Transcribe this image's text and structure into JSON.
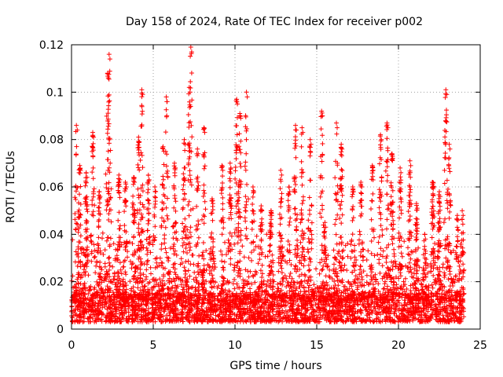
{
  "chart_data": {
    "type": "scatter",
    "title": "Day 158 of 2024, Rate Of TEC Index for receiver p002",
    "xlabel": "GPS time / hours",
    "ylabel": "ROTI / TECUs",
    "xlim": [
      0,
      25
    ],
    "ylim": [
      0,
      0.12
    ],
    "xticks": [
      0,
      5,
      10,
      15,
      20,
      25
    ],
    "xtick_labels": [
      "0",
      "5",
      "10",
      "15",
      "20",
      "25"
    ],
    "yticks": [
      0,
      0.02,
      0.04,
      0.06,
      0.08,
      0.1,
      0.12
    ],
    "ytick_labels": [
      "0",
      "0.02",
      "0.04",
      "0.06",
      "0.08",
      "0.1",
      "0.12"
    ],
    "grid": true,
    "marker": "+",
    "series": [
      {
        "name": "ROTI",
        "color": "#ff0000",
        "x_range": [
          0,
          24
        ],
        "baseline_band": [
          0.003,
          0.015
        ],
        "peaks": [
          {
            "x": 0.3,
            "y": 0.086
          },
          {
            "x": 0.5,
            "y": 0.069
          },
          {
            "x": 0.9,
            "y": 0.066
          },
          {
            "x": 1.3,
            "y": 0.083
          },
          {
            "x": 1.7,
            "y": 0.058
          },
          {
            "x": 2.2,
            "y": 0.108
          },
          {
            "x": 2.3,
            "y": 0.116
          },
          {
            "x": 2.9,
            "y": 0.065
          },
          {
            "x": 3.3,
            "y": 0.062
          },
          {
            "x": 3.8,
            "y": 0.064
          },
          {
            "x": 4.1,
            "y": 0.081
          },
          {
            "x": 4.3,
            "y": 0.101
          },
          {
            "x": 4.7,
            "y": 0.065
          },
          {
            "x": 5.1,
            "y": 0.06
          },
          {
            "x": 5.6,
            "y": 0.077
          },
          {
            "x": 5.8,
            "y": 0.098
          },
          {
            "x": 6.3,
            "y": 0.07
          },
          {
            "x": 6.9,
            "y": 0.08
          },
          {
            "x": 7.2,
            "y": 0.102
          },
          {
            "x": 7.3,
            "y": 0.119
          },
          {
            "x": 7.7,
            "y": 0.076
          },
          {
            "x": 8.1,
            "y": 0.085
          },
          {
            "x": 8.6,
            "y": 0.055
          },
          {
            "x": 9.2,
            "y": 0.069
          },
          {
            "x": 9.7,
            "y": 0.07
          },
          {
            "x": 10.1,
            "y": 0.097
          },
          {
            "x": 10.3,
            "y": 0.091
          },
          {
            "x": 10.7,
            "y": 0.1
          },
          {
            "x": 11.1,
            "y": 0.06
          },
          {
            "x": 11.6,
            "y": 0.052
          },
          {
            "x": 12.2,
            "y": 0.05
          },
          {
            "x": 12.8,
            "y": 0.067
          },
          {
            "x": 13.3,
            "y": 0.06
          },
          {
            "x": 13.7,
            "y": 0.086
          },
          {
            "x": 14.1,
            "y": 0.085
          },
          {
            "x": 14.6,
            "y": 0.08
          },
          {
            "x": 15.3,
            "y": 0.092
          },
          {
            "x": 15.5,
            "y": 0.045
          },
          {
            "x": 16.2,
            "y": 0.087
          },
          {
            "x": 16.5,
            "y": 0.078
          },
          {
            "x": 17.2,
            "y": 0.06
          },
          {
            "x": 17.7,
            "y": 0.062
          },
          {
            "x": 18.4,
            "y": 0.069
          },
          {
            "x": 18.9,
            "y": 0.082
          },
          {
            "x": 19.3,
            "y": 0.087
          },
          {
            "x": 19.6,
            "y": 0.074
          },
          {
            "x": 20.1,
            "y": 0.068
          },
          {
            "x": 20.7,
            "y": 0.071
          },
          {
            "x": 21.1,
            "y": 0.053
          },
          {
            "x": 21.6,
            "y": 0.04
          },
          {
            "x": 22.1,
            "y": 0.062
          },
          {
            "x": 22.5,
            "y": 0.058
          },
          {
            "x": 22.9,
            "y": 0.101
          },
          {
            "x": 23.1,
            "y": 0.078
          },
          {
            "x": 23.6,
            "y": 0.048
          },
          {
            "x": 23.9,
            "y": 0.05
          }
        ]
      }
    ]
  }
}
